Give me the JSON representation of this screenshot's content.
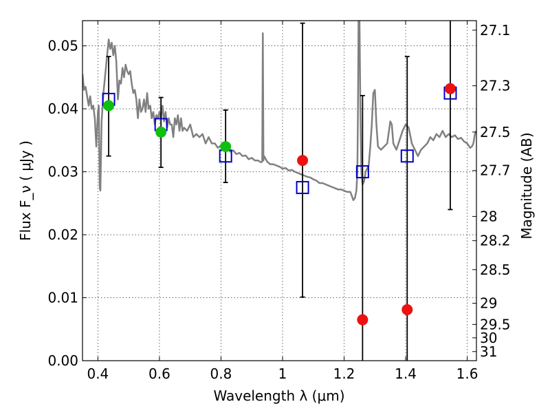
{
  "chart_data": {
    "type": "scatter",
    "xlabel": "Wavelength  λ (μm)",
    "ylabel": "Flux  F_ν ( μJy )",
    "ylabel_right": "Magnitude (AB)",
    "xlim": [
      0.35,
      1.63
    ],
    "ylim": [
      0.0,
      0.054
    ],
    "grid": true,
    "x_ticks": [
      {
        "value": 0.4,
        "label": "0.4"
      },
      {
        "value": 0.6,
        "label": "0.6"
      },
      {
        "value": 0.8,
        "label": "0.8"
      },
      {
        "value": 1.0,
        "label": "1"
      },
      {
        "value": 1.2,
        "label": "1.2"
      },
      {
        "value": 1.4,
        "label": "1.4"
      },
      {
        "value": 1.6,
        "label": "1.6"
      }
    ],
    "y_ticks": [
      {
        "value": 0.0,
        "label": "0.00"
      },
      {
        "value": 0.01,
        "label": "0.01"
      },
      {
        "value": 0.02,
        "label": "0.02"
      },
      {
        "value": 0.03,
        "label": "0.03"
      },
      {
        "value": 0.04,
        "label": "0.04"
      },
      {
        "value": 0.05,
        "label": "0.05"
      }
    ],
    "right_ticks": [
      {
        "mag": 27.1,
        "label": "27.1"
      },
      {
        "mag": 27.3,
        "label": "27.3"
      },
      {
        "mag": 27.5,
        "label": "27.5"
      },
      {
        "mag": 27.7,
        "label": "27.7"
      },
      {
        "mag": 28.0,
        "label": "28"
      },
      {
        "mag": 28.2,
        "label": "28.2"
      },
      {
        "mag": 28.5,
        "label": "28.5"
      },
      {
        "mag": 29.0,
        "label": "29"
      },
      {
        "mag": 29.5,
        "label": "29.5"
      },
      {
        "mag": 30.0,
        "label": "30"
      },
      {
        "mag": 31.0,
        "label": "31"
      }
    ],
    "template_spectrum": {
      "color": "#808080",
      "points": [
        [
          0.35,
          0.0455
        ],
        [
          0.355,
          0.043
        ],
        [
          0.36,
          0.0435
        ],
        [
          0.37,
          0.0405
        ],
        [
          0.375,
          0.042
        ],
        [
          0.38,
          0.04
        ],
        [
          0.385,
          0.0405
        ],
        [
          0.39,
          0.0385
        ],
        [
          0.395,
          0.034
        ],
        [
          0.4,
          0.0395
        ],
        [
          0.403,
          0.0405
        ],
        [
          0.406,
          0.0275
        ],
        [
          0.408,
          0.027
        ],
        [
          0.412,
          0.038
        ],
        [
          0.418,
          0.0425
        ],
        [
          0.425,
          0.046
        ],
        [
          0.43,
          0.0485
        ],
        [
          0.435,
          0.051
        ],
        [
          0.44,
          0.0495
        ],
        [
          0.445,
          0.0505
        ],
        [
          0.45,
          0.0485
        ],
        [
          0.455,
          0.05
        ],
        [
          0.46,
          0.0475
        ],
        [
          0.465,
          0.0415
        ],
        [
          0.47,
          0.0445
        ],
        [
          0.475,
          0.044
        ],
        [
          0.48,
          0.0465
        ],
        [
          0.485,
          0.045
        ],
        [
          0.49,
          0.047
        ],
        [
          0.495,
          0.046
        ],
        [
          0.5,
          0.0455
        ],
        [
          0.505,
          0.046
        ],
        [
          0.51,
          0.044
        ],
        [
          0.515,
          0.0425
        ],
        [
          0.52,
          0.043
        ],
        [
          0.525,
          0.0415
        ],
        [
          0.53,
          0.0385
        ],
        [
          0.535,
          0.0415
        ],
        [
          0.54,
          0.0395
        ],
        [
          0.545,
          0.04
        ],
        [
          0.55,
          0.0415
        ],
        [
          0.555,
          0.0395
        ],
        [
          0.56,
          0.0425
        ],
        [
          0.565,
          0.04
        ],
        [
          0.57,
          0.0405
        ],
        [
          0.575,
          0.0385
        ],
        [
          0.58,
          0.0395
        ],
        [
          0.585,
          0.0375
        ],
        [
          0.59,
          0.039
        ],
        [
          0.595,
          0.0385
        ],
        [
          0.6,
          0.0395
        ],
        [
          0.605,
          0.0385
        ],
        [
          0.61,
          0.0405
        ],
        [
          0.615,
          0.038
        ],
        [
          0.62,
          0.0395
        ],
        [
          0.625,
          0.037
        ],
        [
          0.63,
          0.0385
        ],
        [
          0.635,
          0.0375
        ],
        [
          0.64,
          0.0375
        ],
        [
          0.645,
          0.0355
        ],
        [
          0.65,
          0.0385
        ],
        [
          0.655,
          0.0375
        ],
        [
          0.66,
          0.039
        ],
        [
          0.665,
          0.0365
        ],
        [
          0.67,
          0.0385
        ],
        [
          0.675,
          0.0365
        ],
        [
          0.68,
          0.037
        ],
        [
          0.69,
          0.0365
        ],
        [
          0.7,
          0.0375
        ],
        [
          0.71,
          0.0355
        ],
        [
          0.72,
          0.036
        ],
        [
          0.73,
          0.0355
        ],
        [
          0.74,
          0.036
        ],
        [
          0.75,
          0.0345
        ],
        [
          0.76,
          0.0355
        ],
        [
          0.77,
          0.0345
        ],
        [
          0.78,
          0.0345
        ],
        [
          0.79,
          0.0338
        ],
        [
          0.8,
          0.0342
        ],
        [
          0.81,
          0.0336
        ],
        [
          0.82,
          0.0338
        ],
        [
          0.83,
          0.0332
        ],
        [
          0.84,
          0.0334
        ],
        [
          0.85,
          0.0328
        ],
        [
          0.86,
          0.033
        ],
        [
          0.87,
          0.0325
        ],
        [
          0.88,
          0.0326
        ],
        [
          0.89,
          0.032
        ],
        [
          0.9,
          0.0322
        ],
        [
          0.91,
          0.0318
        ],
        [
          0.92,
          0.0318
        ],
        [
          0.93,
          0.0315
        ],
        [
          0.934,
          0.0316
        ],
        [
          0.936,
          0.052
        ],
        [
          0.938,
          0.0318
        ],
        [
          0.94,
          0.0325
        ],
        [
          0.95,
          0.0316
        ],
        [
          0.96,
          0.0312
        ],
        [
          0.97,
          0.0312
        ],
        [
          0.98,
          0.031
        ],
        [
          0.99,
          0.0308
        ],
        [
          1.0,
          0.0305
        ],
        [
          1.01,
          0.0306
        ],
        [
          1.02,
          0.0302
        ],
        [
          1.03,
          0.0303
        ],
        [
          1.04,
          0.03
        ],
        [
          1.05,
          0.0298
        ],
        [
          1.06,
          0.0296
        ],
        [
          1.07,
          0.0294
        ],
        [
          1.08,
          0.0292
        ],
        [
          1.09,
          0.0291
        ],
        [
          1.1,
          0.0288
        ],
        [
          1.11,
          0.0286
        ],
        [
          1.12,
          0.0282
        ],
        [
          1.13,
          0.0282
        ],
        [
          1.14,
          0.028
        ],
        [
          1.15,
          0.0278
        ],
        [
          1.16,
          0.0276
        ],
        [
          1.17,
          0.0274
        ],
        [
          1.18,
          0.0272
        ],
        [
          1.19,
          0.0272
        ],
        [
          1.2,
          0.027
        ],
        [
          1.21,
          0.0268
        ],
        [
          1.22,
          0.0268
        ],
        [
          1.225,
          0.0262
        ],
        [
          1.23,
          0.0255
        ],
        [
          1.235,
          0.0258
        ],
        [
          1.24,
          0.027
        ],
        [
          1.243,
          0.03
        ],
        [
          1.245,
          0.04
        ],
        [
          1.247,
          0.054
        ],
        [
          1.25,
          0.054
        ],
        [
          1.253,
          0.04
        ],
        [
          1.256,
          0.03
        ],
        [
          1.26,
          0.028
        ],
        [
          1.265,
          0.0285
        ],
        [
          1.27,
          0.03
        ],
        [
          1.275,
          0.0305
        ],
        [
          1.28,
          0.031
        ],
        [
          1.285,
          0.034
        ],
        [
          1.29,
          0.0375
        ],
        [
          1.295,
          0.0425
        ],
        [
          1.3,
          0.043
        ],
        [
          1.305,
          0.0375
        ],
        [
          1.31,
          0.034
        ],
        [
          1.32,
          0.0335
        ],
        [
          1.33,
          0.034
        ],
        [
          1.34,
          0.0345
        ],
        [
          1.35,
          0.038
        ],
        [
          1.355,
          0.0375
        ],
        [
          1.36,
          0.0345
        ],
        [
          1.37,
          0.0335
        ],
        [
          1.38,
          0.035
        ],
        [
          1.39,
          0.0365
        ],
        [
          1.4,
          0.0375
        ],
        [
          1.41,
          0.037
        ],
        [
          1.42,
          0.0345
        ],
        [
          1.43,
          0.0335
        ],
        [
          1.44,
          0.0325
        ],
        [
          1.45,
          0.0335
        ],
        [
          1.46,
          0.034
        ],
        [
          1.47,
          0.0345
        ],
        [
          1.48,
          0.0355
        ],
        [
          1.49,
          0.035
        ],
        [
          1.5,
          0.036
        ],
        [
          1.51,
          0.0355
        ],
        [
          1.52,
          0.0365
        ],
        [
          1.53,
          0.0355
        ],
        [
          1.54,
          0.036
        ],
        [
          1.55,
          0.0355
        ],
        [
          1.56,
          0.0358
        ],
        [
          1.57,
          0.0352
        ],
        [
          1.58,
          0.0354
        ],
        [
          1.59,
          0.0348
        ],
        [
          1.6,
          0.0345
        ],
        [
          1.61,
          0.0338
        ],
        [
          1.615,
          0.034
        ],
        [
          1.62,
          0.0345
        ],
        [
          1.625,
          0.036
        ],
        [
          1.63,
          0.0365
        ]
      ]
    },
    "model_fluxes": {
      "color": "#0000cc",
      "points": [
        [
          0.435,
          0.0415
        ],
        [
          0.605,
          0.0375
        ],
        [
          0.815,
          0.0325
        ],
        [
          1.065,
          0.0275
        ],
        [
          1.26,
          0.03
        ],
        [
          1.405,
          0.0325
        ],
        [
          1.545,
          0.0425
        ]
      ]
    },
    "detections": {
      "color": "#10c010",
      "points": [
        {
          "x": 0.435,
          "y": 0.0405,
          "err_low": 0.0325,
          "err_high": 0.0483
        },
        {
          "x": 0.605,
          "y": 0.0363,
          "err_low": 0.0307,
          "err_high": 0.0418
        },
        {
          "x": 0.815,
          "y": 0.034,
          "err_low": 0.0283,
          "err_high": 0.0398
        }
      ]
    },
    "upper_limits": {
      "color": "#ee1111",
      "points": [
        {
          "x": 1.065,
          "y": 0.0318,
          "err_low": 0.0101,
          "err_high": 0.0536
        },
        {
          "x": 1.26,
          "y": 0.0065,
          "err_low": 0.0,
          "err_high": 0.0421
        },
        {
          "x": 1.405,
          "y": 0.0081,
          "err_low": 0.0,
          "err_high": 0.0483
        },
        {
          "x": 1.545,
          "y": 0.0432,
          "err_low": 0.024,
          "err_high": 0.054
        }
      ]
    }
  }
}
